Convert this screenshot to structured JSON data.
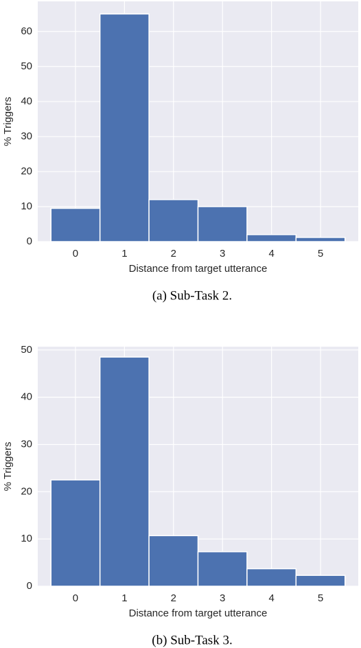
{
  "chart_data": [
    {
      "type": "bar",
      "categories": [
        "0",
        "1",
        "2",
        "3",
        "4",
        "5"
      ],
      "values": [
        9.5,
        65,
        12,
        10,
        2,
        1.2
      ],
      "color": "#4c72b0",
      "ylim": [
        0,
        68.6
      ],
      "yticks": [
        0,
        10,
        20,
        30,
        40,
        50,
        60
      ],
      "grid": true,
      "xlabel": "Distance from target utterance",
      "ylabel": "% Triggers",
      "caption": "(a) Sub-Task 2."
    },
    {
      "type": "bar",
      "categories": [
        "0",
        "1",
        "2",
        "3",
        "4",
        "5"
      ],
      "values": [
        22.5,
        48.5,
        10.7,
        7.3,
        3.7,
        2.3
      ],
      "color": "#4c72b0",
      "ylim": [
        0,
        50.7
      ],
      "yticks": [
        0,
        10,
        20,
        30,
        40,
        50
      ],
      "grid": true,
      "xlabel": "Distance from target utterance",
      "ylabel": "% Triggers",
      "caption": "(b) Sub-Task 3."
    }
  ]
}
